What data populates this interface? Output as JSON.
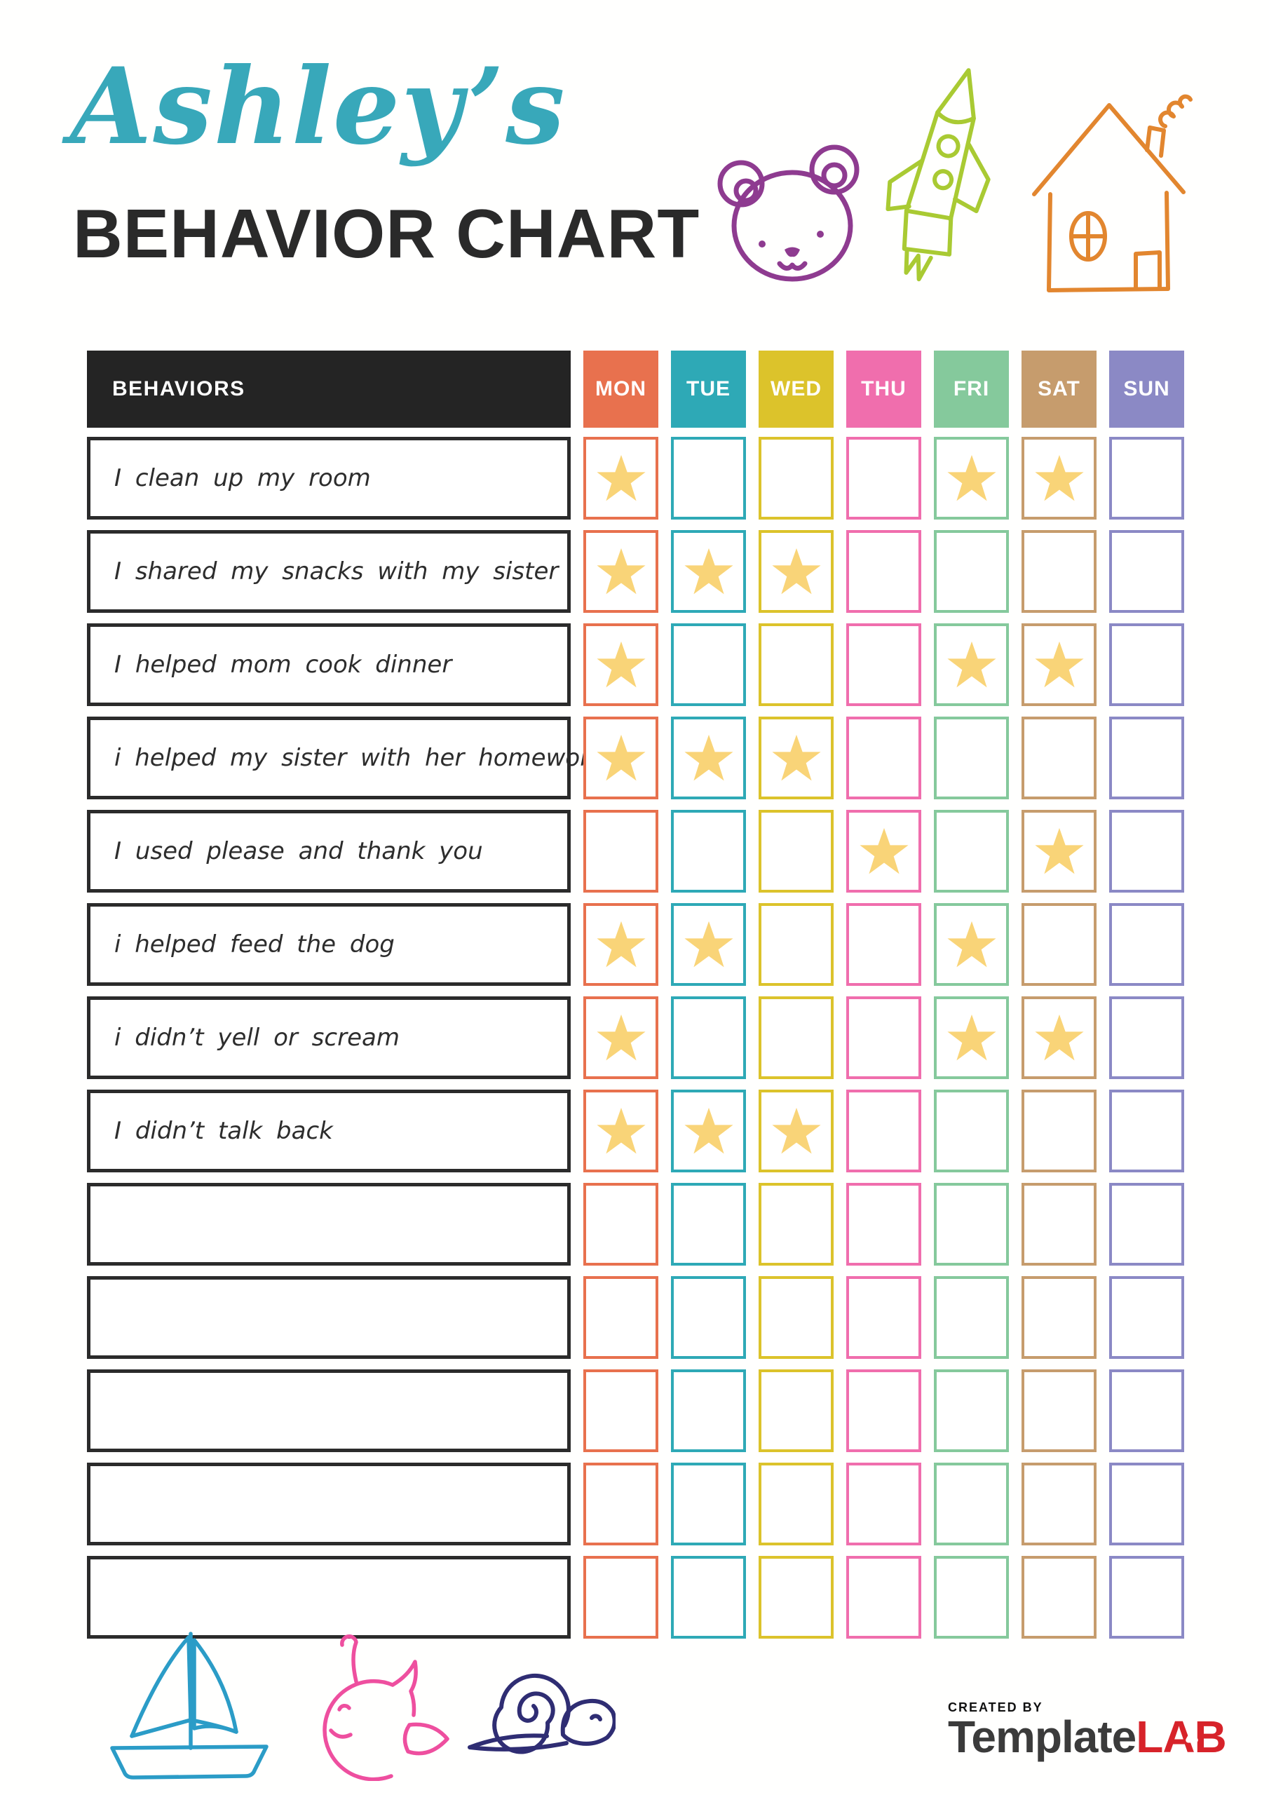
{
  "page": {
    "title_script": "Ashley’s",
    "title_script_color": "#38A8BA",
    "title_main": "BEHAVIOR CHART",
    "title_main_color": "#2A2A2A"
  },
  "table": {
    "behaviors_header": "BEHAVIORS",
    "header_bg": "#242424",
    "star_color": "#F9D478",
    "days": [
      {
        "label": "MON",
        "color": "#E8714E"
      },
      {
        "label": "TUE",
        "color": "#2EA9B6"
      },
      {
        "label": "WED",
        "color": "#DCC32B"
      },
      {
        "label": "THU",
        "color": "#F06EAD"
      },
      {
        "label": "FRI",
        "color": "#85C99C"
      },
      {
        "label": "SAT",
        "color": "#C69C6D"
      },
      {
        "label": "SUN",
        "color": "#8B89C5"
      }
    ],
    "rows": [
      {
        "label": "I clean up my room",
        "stars": [
          1,
          0,
          0,
          0,
          1,
          1,
          0
        ]
      },
      {
        "label": "I shared my snacks with my sister",
        "stars": [
          1,
          1,
          1,
          0,
          0,
          0,
          0
        ]
      },
      {
        "label": "I helped mom cook dinner",
        "stars": [
          1,
          0,
          0,
          0,
          1,
          1,
          0
        ]
      },
      {
        "label": "i helped my sister with her homework",
        "stars": [
          1,
          1,
          1,
          0,
          0,
          0,
          0
        ]
      },
      {
        "label": "I used please and thank you",
        "stars": [
          0,
          0,
          0,
          1,
          0,
          1,
          0
        ]
      },
      {
        "label": "i helped feed the dog",
        "stars": [
          1,
          1,
          0,
          0,
          1,
          0,
          0
        ]
      },
      {
        "label": "i didn’t yell or scream",
        "stars": [
          1,
          0,
          0,
          0,
          1,
          1,
          0
        ]
      },
      {
        "label": "I didn’t talk back",
        "stars": [
          1,
          1,
          1,
          0,
          0,
          0,
          0
        ]
      },
      {
        "label": "",
        "stars": [
          0,
          0,
          0,
          0,
          0,
          0,
          0
        ]
      },
      {
        "label": "",
        "stars": [
          0,
          0,
          0,
          0,
          0,
          0,
          0
        ]
      },
      {
        "label": "",
        "stars": [
          0,
          0,
          0,
          0,
          0,
          0,
          0
        ]
      },
      {
        "label": "",
        "stars": [
          0,
          0,
          0,
          0,
          0,
          0,
          0
        ]
      },
      {
        "label": "",
        "stars": [
          0,
          0,
          0,
          0,
          0,
          0,
          0
        ]
      }
    ]
  },
  "decorations": {
    "bear": {
      "color": "#8E3B90"
    },
    "rocket": {
      "color": "#A9CA33"
    },
    "house": {
      "color": "#E2862F"
    },
    "sailboat": {
      "color": "#2B9CC7"
    },
    "whale": {
      "color": "#EE4F9F"
    },
    "snail": {
      "color": "#2F2D73"
    }
  },
  "footer": {
    "created_by": "CREATED BY",
    "brand_dark": "Template",
    "brand_red": "LAB",
    "brand_dark_color": "#3B3B3B",
    "brand_red_color": "#D7232A"
  }
}
